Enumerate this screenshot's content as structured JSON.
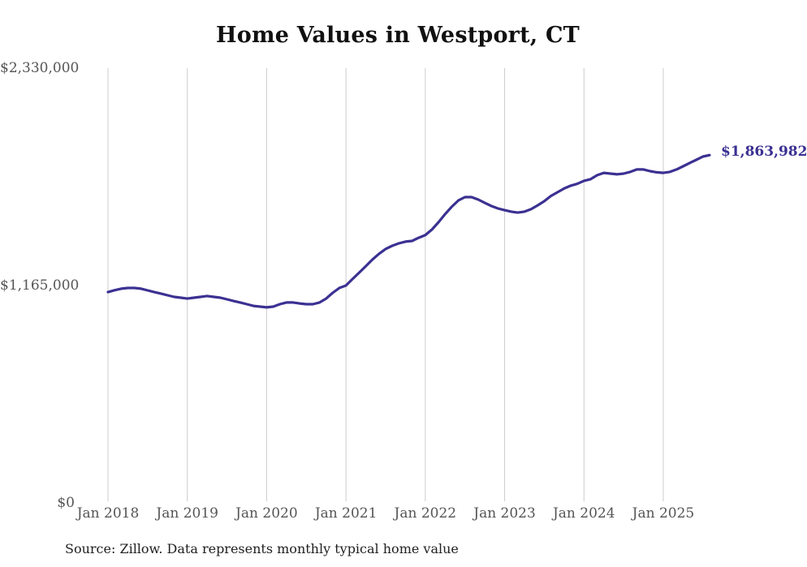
{
  "title": "Home Values in Westport, CT",
  "source_note": "Source: Zillow. Data represents monthly typical home value",
  "colors": {
    "line": "#3b3192",
    "grid": "#cccccc",
    "axis_text": "#555555",
    "title_text": "#111111",
    "source_text": "#1f1f1f",
    "background": "#ffffff"
  },
  "chart_data": {
    "type": "line",
    "title": "Home Values in Westport, CT",
    "xlabel": "",
    "ylabel": "",
    "ylim": [
      0,
      2330000
    ],
    "y_ticks": [
      2330000,
      1165000,
      0
    ],
    "y_tick_labels": [
      "$2,330,000",
      "$1,165,000",
      "$0"
    ],
    "x_tick_labels": [
      "Jan 2018",
      "Jan 2019",
      "Jan 2020",
      "Jan 2021",
      "Jan 2022",
      "Jan 2023",
      "Jan 2024",
      "Jan 2025"
    ],
    "x_start": "Jan 2018",
    "x_end": "Aug 2025",
    "frequency": "monthly",
    "grid": "vertical-only",
    "legend": "none",
    "end_label": "$1,863,982",
    "end_value": 1863982,
    "series": [
      {
        "name": "Typical home value",
        "values": [
          1130000,
          1140000,
          1148000,
          1152000,
          1152000,
          1148000,
          1139000,
          1130000,
          1122000,
          1113000,
          1104000,
          1100000,
          1095000,
          1100000,
          1104000,
          1109000,
          1104000,
          1100000,
          1091000,
          1082000,
          1074000,
          1065000,
          1056000,
          1052000,
          1048000,
          1052000,
          1065000,
          1074000,
          1074000,
          1069000,
          1065000,
          1065000,
          1074000,
          1095000,
          1126000,
          1152000,
          1165000,
          1200000,
          1234000,
          1269000,
          1304000,
          1335000,
          1361000,
          1378000,
          1391000,
          1400000,
          1404000,
          1421000,
          1435000,
          1465000,
          1504000,
          1548000,
          1587000,
          1621000,
          1639000,
          1639000,
          1626000,
          1608000,
          1591000,
          1578000,
          1569000,
          1561000,
          1556000,
          1561000,
          1574000,
          1595000,
          1617000,
          1645000,
          1665000,
          1685000,
          1700000,
          1710000,
          1726000,
          1735000,
          1756000,
          1769000,
          1765000,
          1761000,
          1765000,
          1774000,
          1787000,
          1787000,
          1778000,
          1772000,
          1769000,
          1774000,
          1787000,
          1804000,
          1822000,
          1839000,
          1856000,
          1863982
        ]
      }
    ]
  }
}
